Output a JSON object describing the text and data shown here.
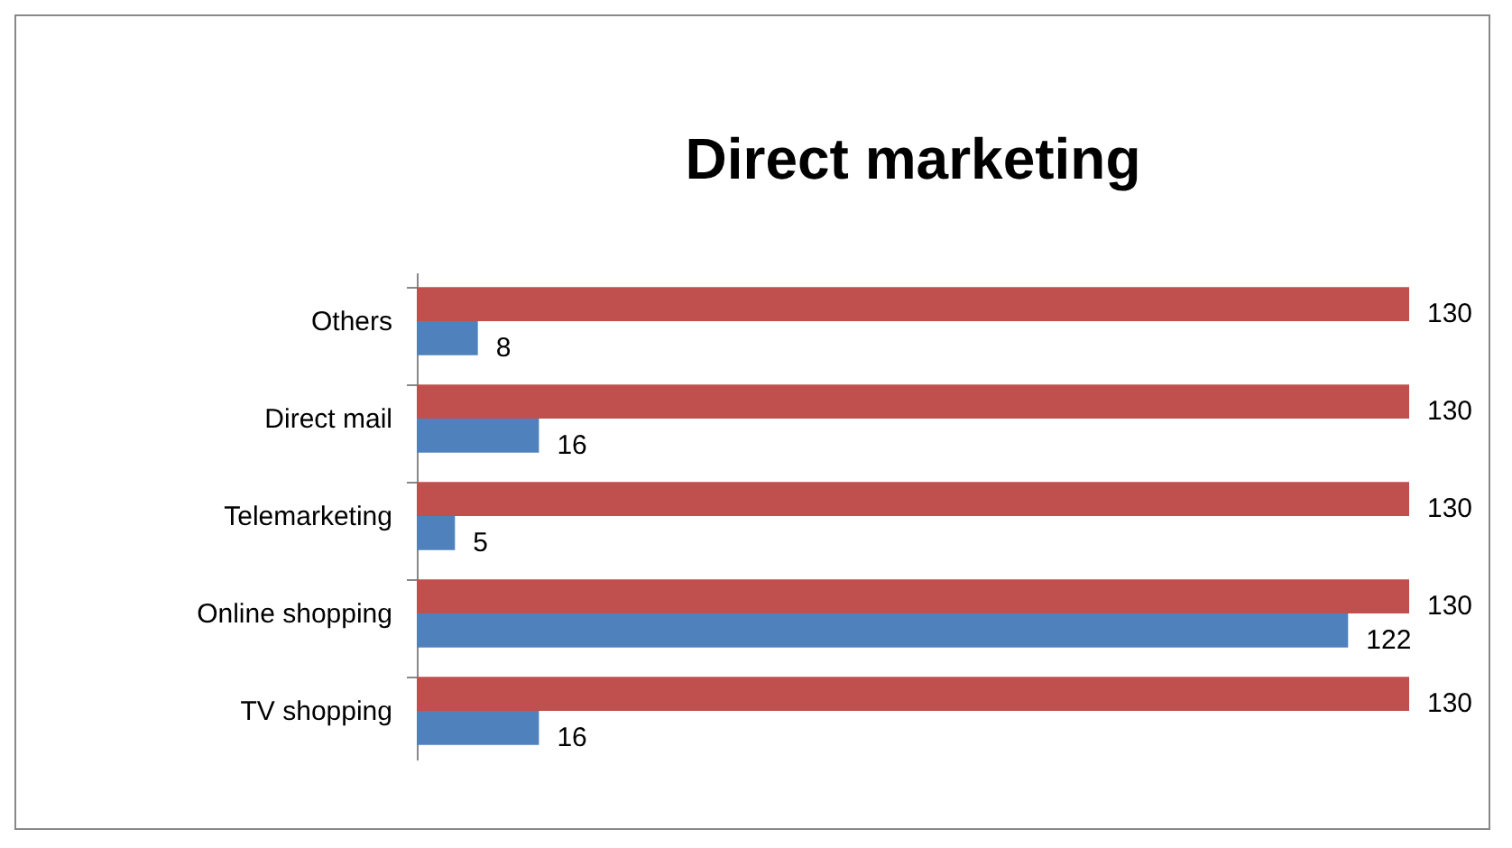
{
  "chart_data": {
    "type": "bar",
    "orientation": "horizontal",
    "title": "Direct marketing",
    "categories": [
      "Others",
      "Direct mail",
      "Telemarketing",
      "Online shopping",
      "TV shopping"
    ],
    "series": [
      {
        "color": "#c0504d",
        "values": [
          130,
          130,
          130,
          130,
          130
        ]
      },
      {
        "color": "#4f81bd",
        "values": [
          8,
          16,
          5,
          122,
          16
        ]
      }
    ],
    "data_labels": true,
    "tick_labels": "y"
  }
}
